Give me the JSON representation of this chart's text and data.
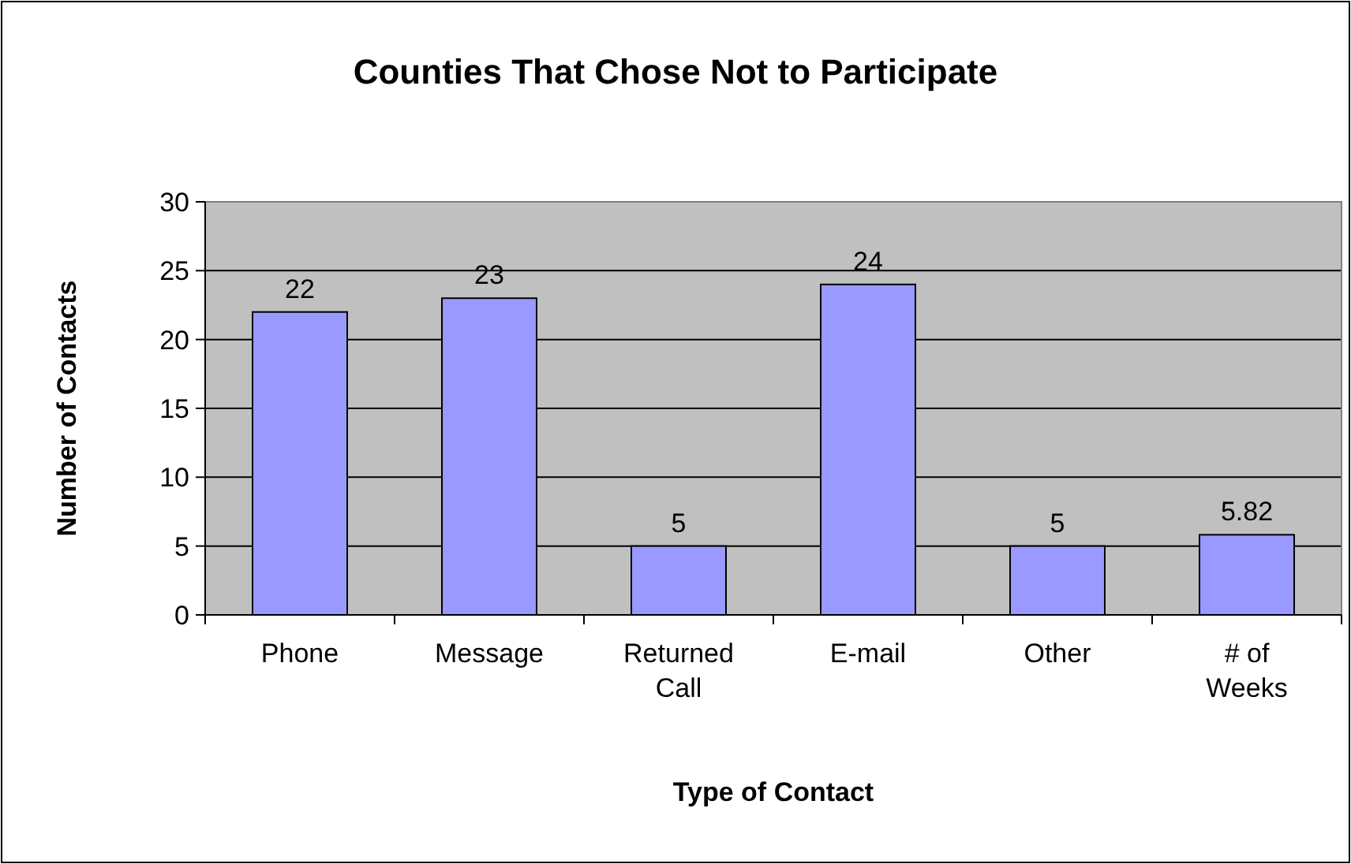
{
  "chart_data": {
    "type": "bar",
    "title": "Counties That Chose Not to Participate",
    "xlabel": "Type of Contact",
    "ylabel": "Number of Contacts",
    "categories": [
      "Phone",
      "Message",
      "Returned Call",
      "E-mail",
      "Other",
      "# of Weeks"
    ],
    "values": [
      22,
      23,
      5,
      24,
      5,
      5.82
    ],
    "color": "#9999ff",
    "ylim": [
      0,
      30
    ],
    "yticks": [
      0,
      5,
      10,
      15,
      20,
      25,
      30
    ],
    "grid": "y",
    "data_labels": true
  }
}
